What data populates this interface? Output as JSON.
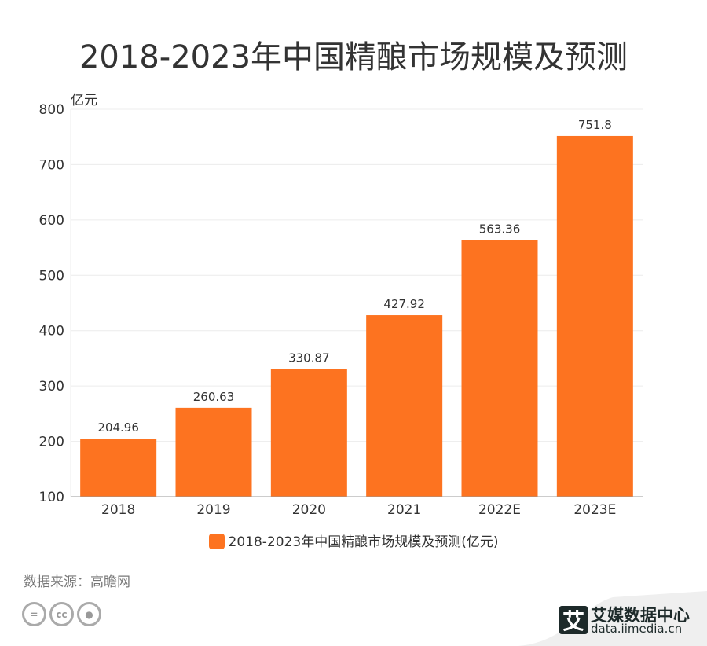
{
  "chart_data": {
    "type": "bar",
    "title": "2018-2023年中国精酿市场规模及预测",
    "ylabel": "亿元",
    "xlabel": "",
    "categories": [
      "2018",
      "2019",
      "2020",
      "2021",
      "2022E",
      "2023E"
    ],
    "values": [
      204.96,
      260.63,
      330.87,
      427.92,
      563.36,
      751.8
    ],
    "value_labels": [
      "204.96",
      "260.63",
      "330.87",
      "427.92",
      "563.36",
      "751.8"
    ],
    "ylim": [
      100,
      800
    ],
    "yticks": [
      100,
      200,
      300,
      400,
      500,
      600,
      700,
      800
    ],
    "grid": true,
    "legend": {
      "label": "2018-2023年中国精酿市场规模及预测(亿元)",
      "placement": "bottom"
    },
    "color": "#fd7320"
  },
  "source": "数据来源：高瞻网",
  "brand": {
    "name_cn": "艾媒数据中心",
    "url": "data.iimedia.cn",
    "mark": "艾"
  },
  "license_icons": [
    "=",
    "cc",
    "person"
  ]
}
